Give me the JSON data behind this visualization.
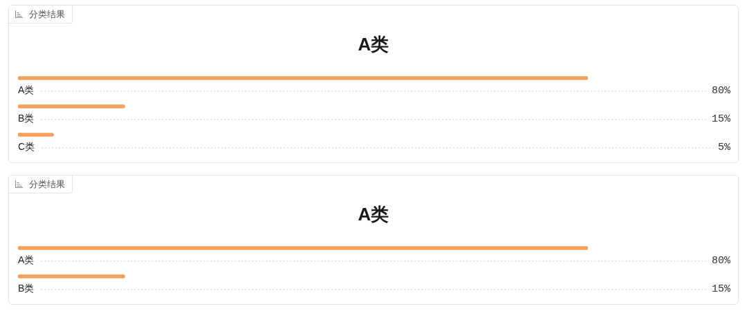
{
  "chart_data": [
    {
      "type": "bar",
      "orientation": "horizontal",
      "title": "A类",
      "annotations": [
        "分类结果"
      ],
      "categories": [
        "A类",
        "B类",
        "C类"
      ],
      "values": [
        80,
        15,
        5
      ],
      "value_labels": [
        "80%",
        "15%",
        "5%"
      ],
      "color": "#f4a05c",
      "tick_labels": "y",
      "grid": "y"
    },
    {
      "type": "bar",
      "orientation": "horizontal",
      "title": "A类",
      "annotations": [
        "分类结果"
      ],
      "categories": [
        "A类",
        "B类"
      ],
      "values": [
        80,
        15
      ],
      "value_labels": [
        "80%",
        "15%"
      ],
      "color": "#f4a05c",
      "tick_labels": "y",
      "grid": "y"
    }
  ]
}
